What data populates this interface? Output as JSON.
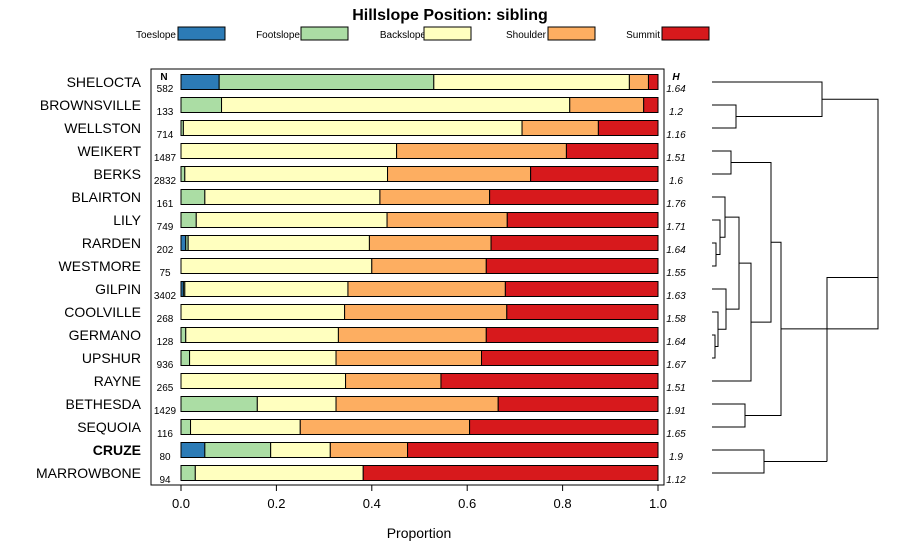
{
  "chart_data": {
    "type": "bar",
    "stacked": true,
    "orientation": "horizontal",
    "title": "Hillslope Position: sibling",
    "xlabel": "Proportion",
    "xlim": [
      0,
      1
    ],
    "x_ticks": [
      "0.0",
      "0.2",
      "0.4",
      "0.6",
      "0.8",
      "1.0"
    ],
    "n_header": "N",
    "h_header": "H",
    "legend_position": "top",
    "series": [
      {
        "name": "Toeslope",
        "color": "#2c7bb6"
      },
      {
        "name": "Footslope",
        "color": "#abdda4"
      },
      {
        "name": "Backslope",
        "color": "#ffffbf"
      },
      {
        "name": "Shoulder",
        "color": "#fdae61"
      },
      {
        "name": "Summit",
        "color": "#d7191c"
      }
    ],
    "rows": [
      {
        "name": "SHELOCTA",
        "n": "582",
        "h": "1.64",
        "bold": false,
        "values": [
          0.08,
          0.45,
          0.41,
          0.04,
          0.02
        ]
      },
      {
        "name": "BROWNSVILLE",
        "n": "133",
        "h": "1.2",
        "bold": false,
        "values": [
          0.0,
          0.085,
          0.73,
          0.155,
          0.03
        ]
      },
      {
        "name": "WELLSTON",
        "n": "714",
        "h": "1.16",
        "bold": false,
        "values": [
          0.0,
          0.005,
          0.71,
          0.16,
          0.125
        ]
      },
      {
        "name": "WEIKERT",
        "n": "1487",
        "h": "1.51",
        "bold": false,
        "values": [
          0.0,
          0.0,
          0.452,
          0.356,
          0.192
        ]
      },
      {
        "name": "BERKS",
        "n": "2832",
        "h": "1.6",
        "bold": false,
        "values": [
          0.0,
          0.008,
          0.425,
          0.3,
          0.267
        ]
      },
      {
        "name": "BLAIRTON",
        "n": "161",
        "h": "1.76",
        "bold": false,
        "values": [
          0.0,
          0.05,
          0.367,
          0.23,
          0.353
        ]
      },
      {
        "name": "LILY",
        "n": "749",
        "h": "1.71",
        "bold": false,
        "values": [
          0.0,
          0.032,
          0.4,
          0.252,
          0.316
        ]
      },
      {
        "name": "RARDEN",
        "n": "202",
        "h": "1.64",
        "bold": false,
        "values": [
          0.01,
          0.005,
          0.38,
          0.255,
          0.35
        ]
      },
      {
        "name": "WESTMORE",
        "n": "75",
        "h": "1.55",
        "bold": false,
        "values": [
          0.0,
          0.0,
          0.4,
          0.24,
          0.36
        ]
      },
      {
        "name": "GILPIN",
        "n": "3402",
        "h": "1.63",
        "bold": false,
        "values": [
          0.005,
          0.003,
          0.342,
          0.33,
          0.32
        ]
      },
      {
        "name": "COOLVILLE",
        "n": "268",
        "h": "1.58",
        "bold": false,
        "values": [
          0.0,
          0.0,
          0.343,
          0.34,
          0.317
        ]
      },
      {
        "name": "GERMANO",
        "n": "128",
        "h": "1.64",
        "bold": false,
        "values": [
          0.0,
          0.01,
          0.32,
          0.31,
          0.36
        ]
      },
      {
        "name": "UPSHUR",
        "n": "936",
        "h": "1.67",
        "bold": false,
        "values": [
          0.0,
          0.018,
          0.307,
          0.305,
          0.37
        ]
      },
      {
        "name": "RAYNE",
        "n": "265",
        "h": "1.51",
        "bold": false,
        "values": [
          0.0,
          0.0,
          0.345,
          0.2,
          0.455
        ]
      },
      {
        "name": "BETHESDA",
        "n": "1429",
        "h": "1.91",
        "bold": false,
        "values": [
          0.0,
          0.16,
          0.165,
          0.34,
          0.335
        ]
      },
      {
        "name": "SEQUOIA",
        "n": "116",
        "h": "1.65",
        "bold": false,
        "values": [
          0.0,
          0.02,
          0.23,
          0.355,
          0.395
        ]
      },
      {
        "name": "CRUZE",
        "n": "80",
        "h": "1.9",
        "bold": true,
        "values": [
          0.05,
          0.138,
          0.125,
          0.162,
          0.525
        ]
      },
      {
        "name": "MARROWBONE",
        "n": "94",
        "h": "1.12",
        "bold": false,
        "values": [
          0.0,
          0.03,
          0.352,
          0.0,
          0.618
        ]
      }
    ]
  }
}
